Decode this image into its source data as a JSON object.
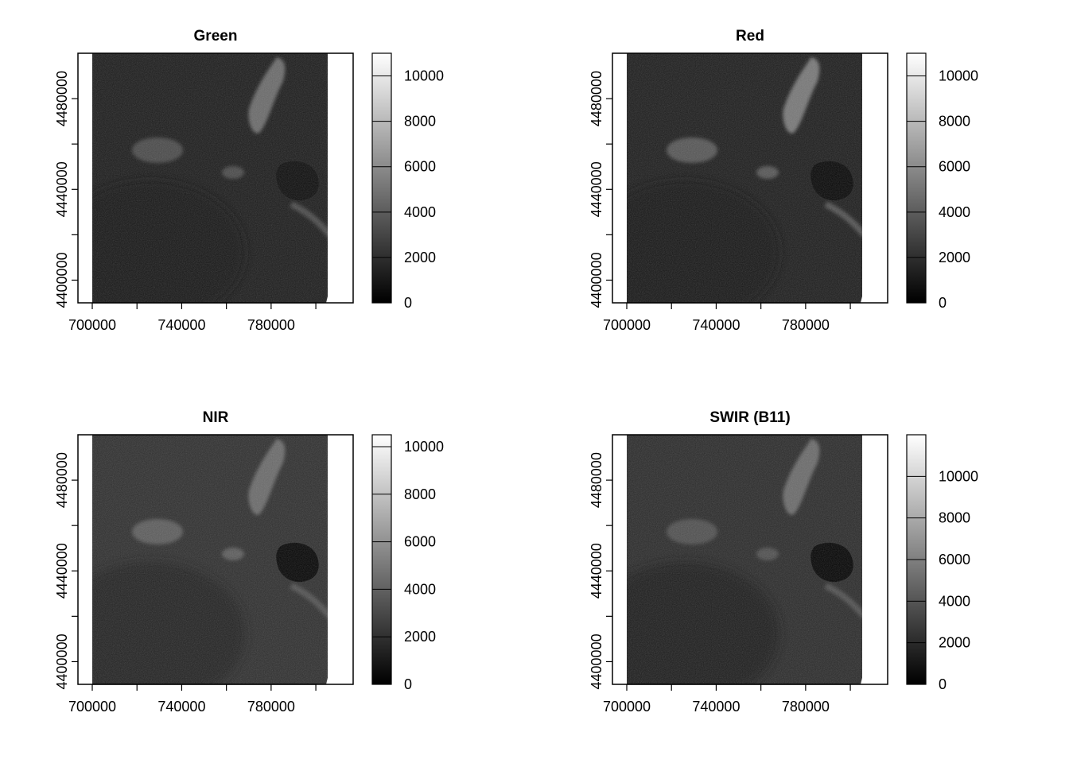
{
  "panels": [
    {
      "title": "Green",
      "legend_max": 11000,
      "legend_ticks": [
        0,
        2000,
        4000,
        6000,
        8000,
        10000
      ],
      "style": "green"
    },
    {
      "title": "Red",
      "legend_max": 11000,
      "legend_ticks": [
        0,
        2000,
        4000,
        6000,
        8000,
        10000
      ],
      "style": "red"
    },
    {
      "title": "NIR",
      "legend_max": 10500,
      "legend_ticks": [
        0,
        2000,
        4000,
        6000,
        8000,
        10000
      ],
      "style": "nir"
    },
    {
      "title": "SWIR (B11)",
      "legend_max": 12000,
      "legend_ticks": [
        0,
        2000,
        4000,
        6000,
        8000,
        10000
      ],
      "style": "swir"
    }
  ],
  "x_axis": {
    "labeled_ticks": [
      700000,
      740000,
      780000
    ],
    "minor_ticks": [
      720000,
      760000,
      800000
    ],
    "range": [
      700000,
      811000
    ]
  },
  "y_axis": {
    "labeled_ticks": [
      4400000,
      4440000,
      4480000
    ],
    "minor_ticks": [
      4420000,
      4460000
    ],
    "range": [
      4390000,
      4500000
    ]
  },
  "colors": {
    "ramp_low": "#000000",
    "ramp_high": "#ffffff"
  }
}
